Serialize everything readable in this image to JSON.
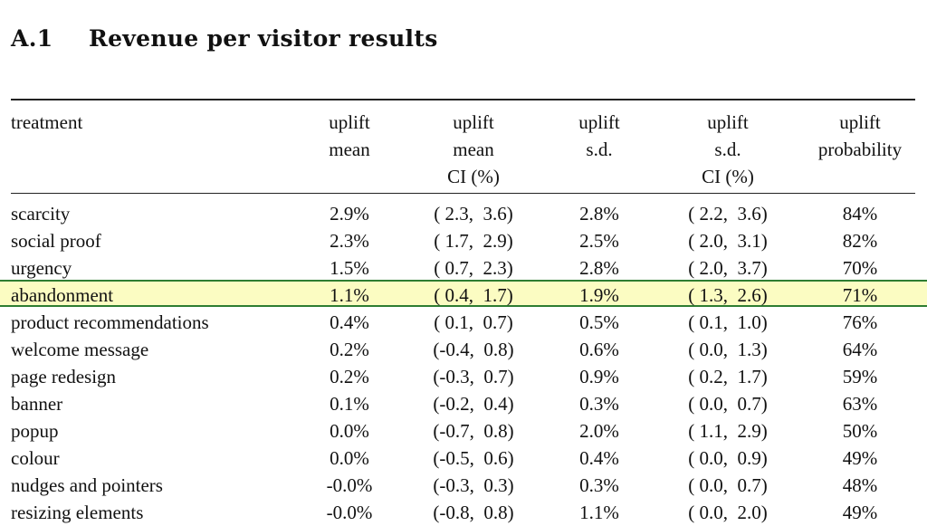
{
  "section": {
    "number": "A.1",
    "title": "Revenue per visitor results"
  },
  "columns": [
    [
      "treatment"
    ],
    [
      "uplift",
      "mean"
    ],
    [
      "uplift",
      "mean",
      "CI (%)"
    ],
    [
      "uplift",
      "s.d."
    ],
    [
      "uplift",
      "s.d.",
      "CI (%)"
    ],
    [
      "uplift",
      "probability"
    ]
  ],
  "highlight_color": "#fbfcc2",
  "highlight_border_color": "#2e7d32",
  "rows": [
    {
      "treatment": "scarcity",
      "mean": "2.9%",
      "mean_ci": "( 2.3,  3.6)",
      "sd": "2.8%",
      "sd_ci": "( 2.2,  3.6)",
      "probability": "84%"
    },
    {
      "treatment": "social proof",
      "mean": "2.3%",
      "mean_ci": "( 1.7,  2.9)",
      "sd": "2.5%",
      "sd_ci": "( 2.0,  3.1)",
      "probability": "82%"
    },
    {
      "treatment": "urgency",
      "mean": "1.5%",
      "mean_ci": "( 0.7,  2.3)",
      "sd": "2.8%",
      "sd_ci": "( 2.0,  3.7)",
      "probability": "70%"
    },
    {
      "treatment": "abandonment",
      "mean": "1.1%",
      "mean_ci": "( 0.4,  1.7)",
      "sd": "1.9%",
      "sd_ci": "( 1.3,  2.6)",
      "probability": "71%",
      "highlighted": true
    },
    {
      "treatment": "product recommendations",
      "mean": "0.4%",
      "mean_ci": "( 0.1,  0.7)",
      "sd": "0.5%",
      "sd_ci": "( 0.1,  1.0)",
      "probability": "76%"
    },
    {
      "treatment": "welcome message",
      "mean": "0.2%",
      "mean_ci": "(-0.4,  0.8)",
      "sd": "0.6%",
      "sd_ci": "( 0.0,  1.3)",
      "probability": "64%"
    },
    {
      "treatment": "page redesign",
      "mean": "0.2%",
      "mean_ci": "(-0.3,  0.7)",
      "sd": "0.9%",
      "sd_ci": "( 0.2,  1.7)",
      "probability": "59%"
    },
    {
      "treatment": "banner",
      "mean": "0.1%",
      "mean_ci": "(-0.2,  0.4)",
      "sd": "0.3%",
      "sd_ci": "( 0.0,  0.7)",
      "probability": "63%"
    },
    {
      "treatment": "popup",
      "mean": "0.0%",
      "mean_ci": "(-0.7,  0.8)",
      "sd": "2.0%",
      "sd_ci": "( 1.1,  2.9)",
      "probability": "50%"
    },
    {
      "treatment": "colour",
      "mean": "0.0%",
      "mean_ci": "(-0.5,  0.6)",
      "sd": "0.4%",
      "sd_ci": "( 0.0,  0.9)",
      "probability": "49%"
    },
    {
      "treatment": "nudges and pointers",
      "mean": "-0.0%",
      "mean_ci": "(-0.3,  0.3)",
      "sd": "0.3%",
      "sd_ci": "( 0.0,  0.7)",
      "probability": "48%"
    },
    {
      "treatment": "resizing elements",
      "mean": "-0.0%",
      "mean_ci": "(-0.8,  0.8)",
      "sd": "1.1%",
      "sd_ci": "( 0.0,  2.0)",
      "probability": "49%"
    }
  ]
}
